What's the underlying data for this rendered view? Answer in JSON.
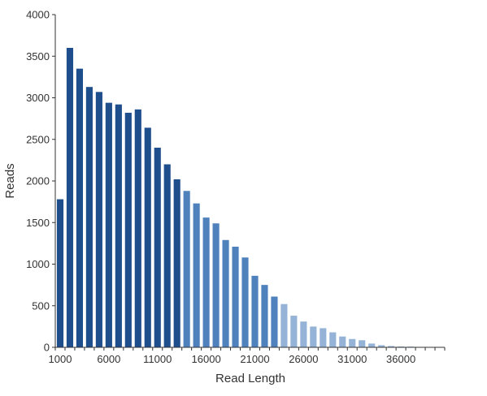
{
  "chart_data": {
    "type": "bar",
    "title": "",
    "xlabel": "Read Length",
    "ylabel": "Reads",
    "ylim": [
      0,
      4000
    ],
    "y_ticks": [
      0,
      500,
      1000,
      1500,
      2000,
      2500,
      3000,
      3500,
      4000
    ],
    "x_ticks": [
      1000,
      6000,
      11000,
      16000,
      21000,
      26000,
      31000,
      36000
    ],
    "bin_width": 1000,
    "x": [
      1000,
      2000,
      3000,
      4000,
      5000,
      6000,
      7000,
      8000,
      9000,
      10000,
      11000,
      12000,
      13000,
      14000,
      15000,
      16000,
      17000,
      18000,
      19000,
      20000,
      21000,
      22000,
      23000,
      24000,
      25000,
      26000,
      27000,
      28000,
      29000,
      30000,
      31000,
      32000,
      33000,
      34000,
      35000,
      36000,
      37000,
      38000,
      39000,
      40000
    ],
    "values": [
      1780,
      3600,
      3350,
      3130,
      3070,
      2940,
      2920,
      2820,
      2860,
      2640,
      2400,
      2200,
      2020,
      1880,
      1730,
      1560,
      1490,
      1290,
      1210,
      1080,
      860,
      750,
      610,
      520,
      380,
      310,
      250,
      230,
      180,
      130,
      100,
      85,
      45,
      25,
      15,
      10,
      8,
      5,
      3,
      2
    ],
    "colors": {
      "dark": "#1f4e8c",
      "medium": "#4f81bd",
      "light": "#95b3d7",
      "axis": "#333333"
    }
  }
}
